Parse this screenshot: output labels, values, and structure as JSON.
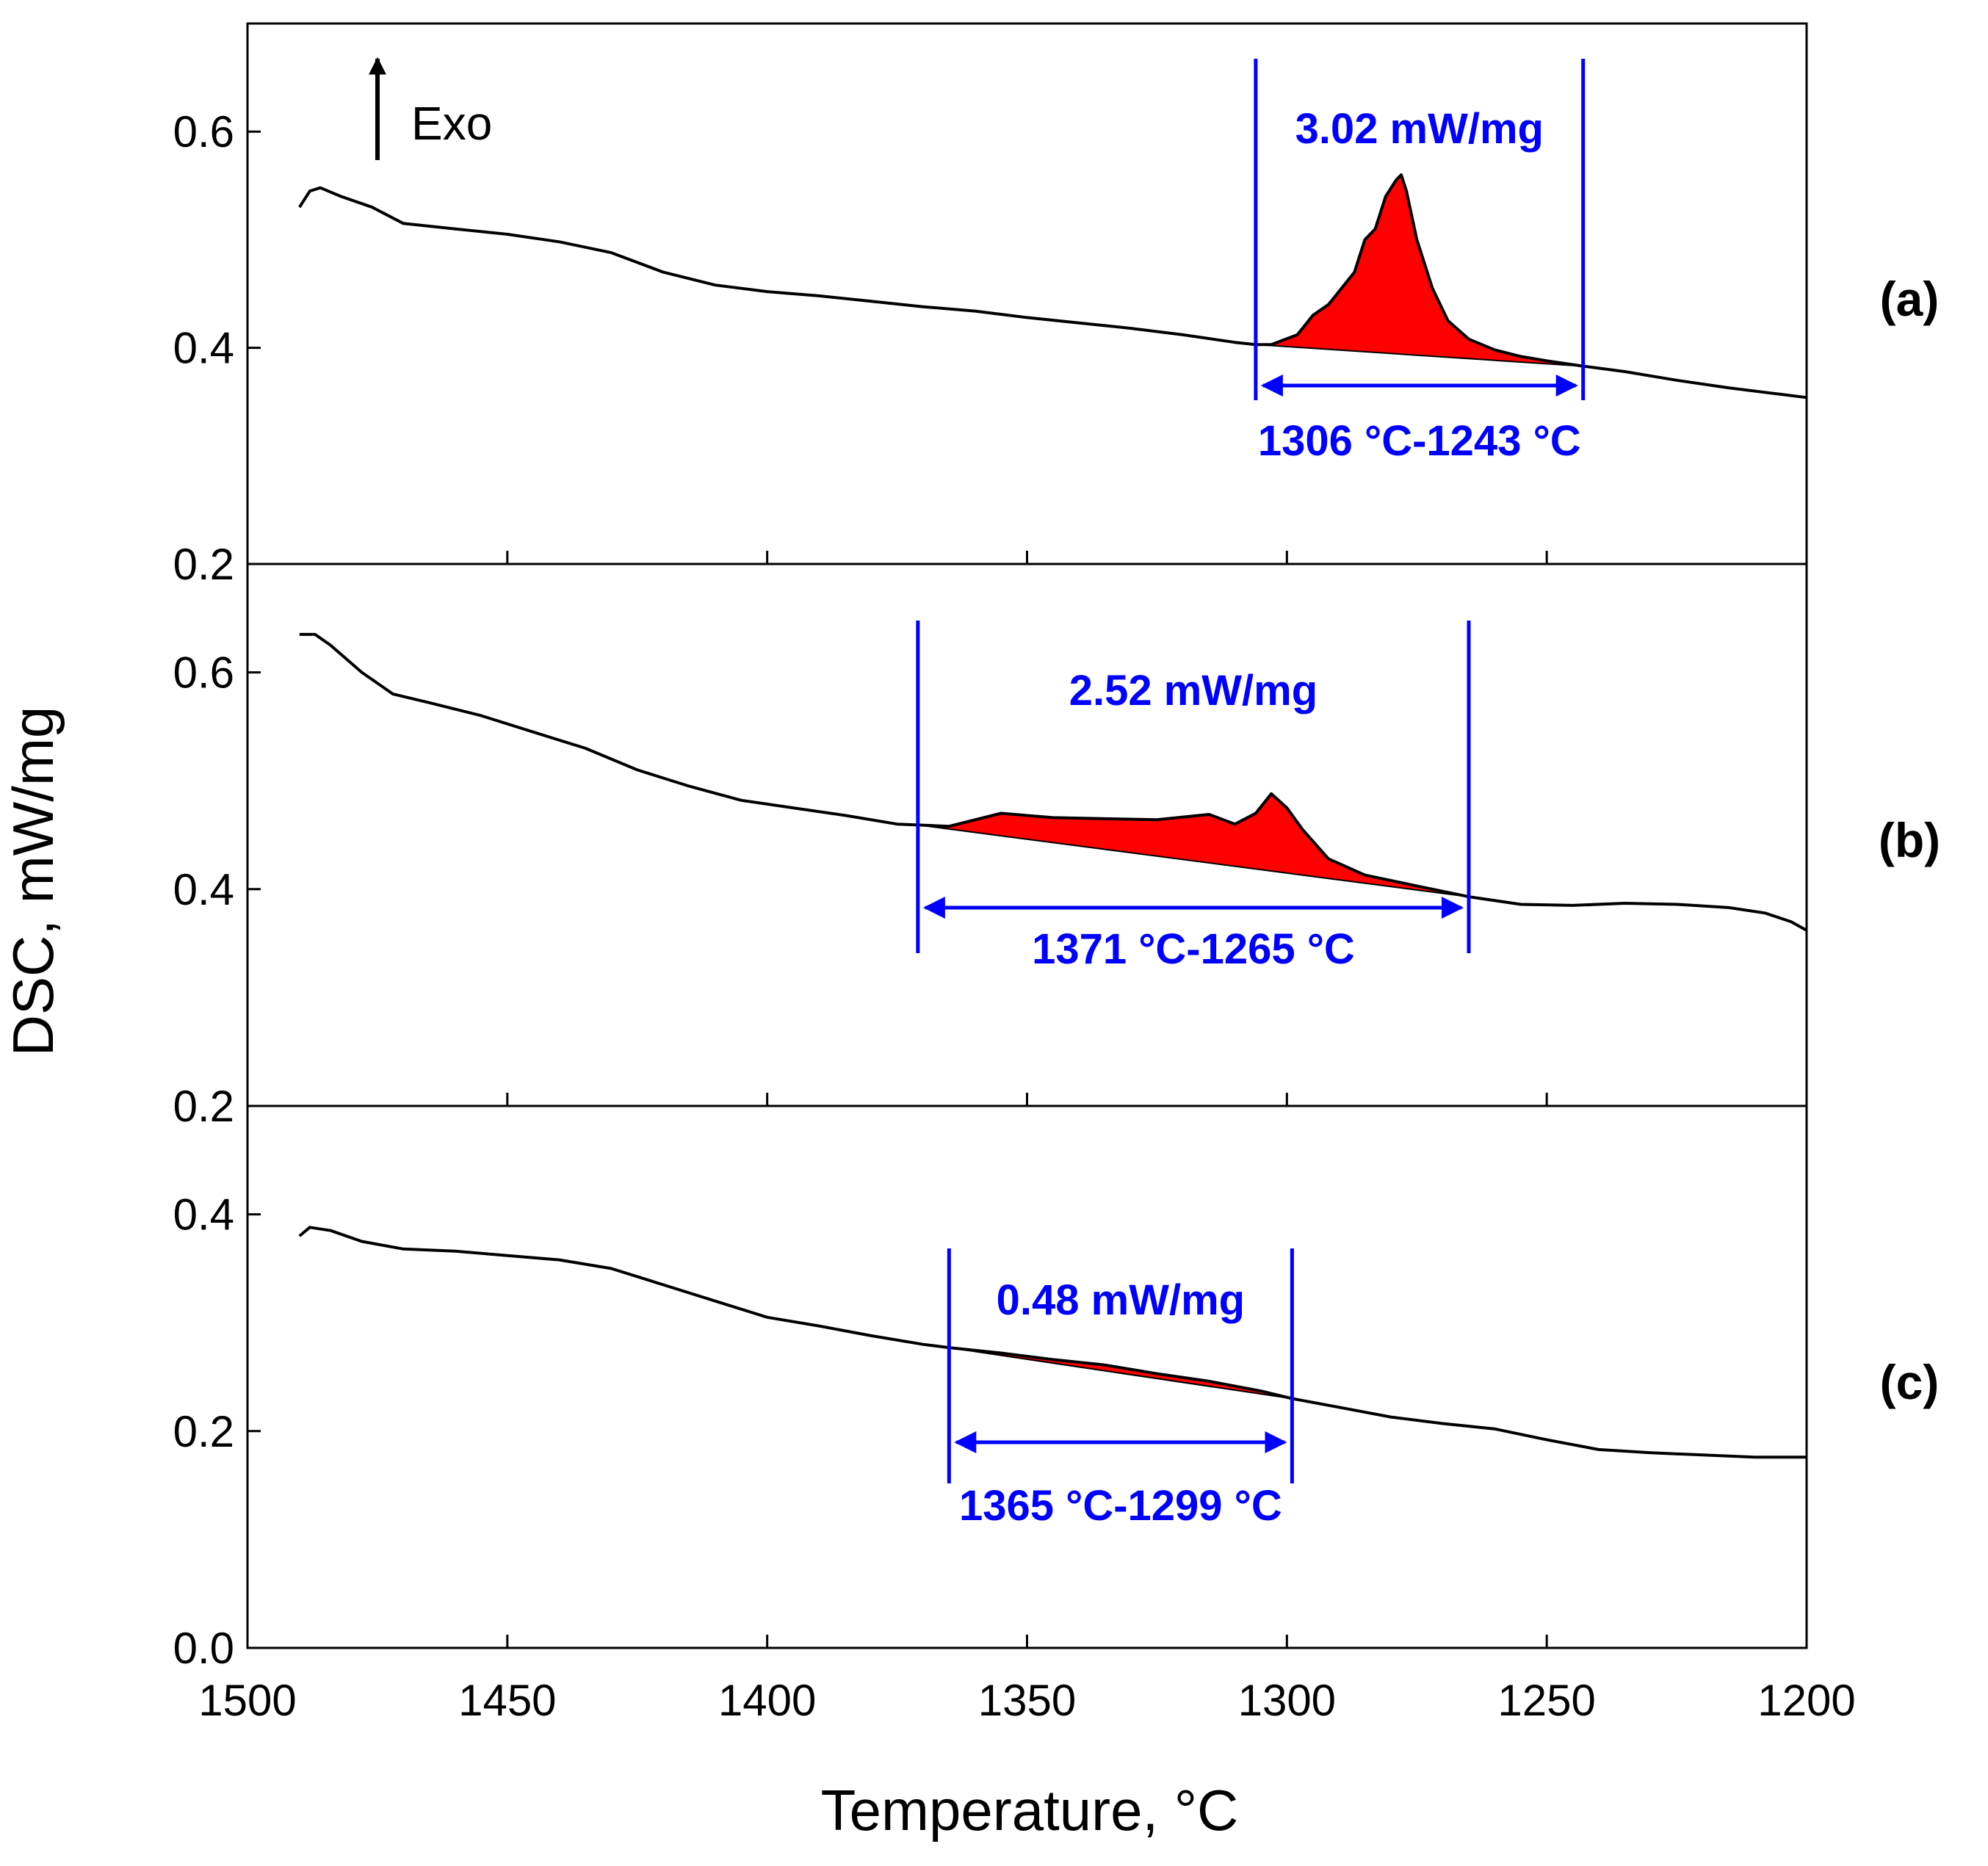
{
  "chart_data": {
    "type": "line",
    "xlabel": "Temperature, °C",
    "ylabel": "DSC, mW/mg",
    "xlim": [
      1500,
      1200
    ],
    "xticks": [
      "1500",
      "1450",
      "1400",
      "1350",
      "1300",
      "1250",
      "1200"
    ],
    "exo_label": "Exo",
    "colors": {
      "curve": "#000000",
      "annotation": "#0000ff",
      "fill": "#ff0000"
    },
    "panels": [
      {
        "label": "(a)",
        "ylim": [
          0.2,
          0.7
        ],
        "yticks": [
          "0.2",
          "0.4",
          "0.6"
        ],
        "curve": [
          [
            1490,
            0.53
          ],
          [
            1488,
            0.545
          ],
          [
            1486,
            0.548
          ],
          [
            1482,
            0.54
          ],
          [
            1476,
            0.53
          ],
          [
            1470,
            0.515
          ],
          [
            1460,
            0.51
          ],
          [
            1450,
            0.505
          ],
          [
            1440,
            0.498
          ],
          [
            1430,
            0.488
          ],
          [
            1420,
            0.47
          ],
          [
            1410,
            0.458
          ],
          [
            1400,
            0.452
          ],
          [
            1390,
            0.448
          ],
          [
            1380,
            0.443
          ],
          [
            1370,
            0.438
          ],
          [
            1360,
            0.434
          ],
          [
            1350,
            0.428
          ],
          [
            1340,
            0.423
          ],
          [
            1330,
            0.418
          ],
          [
            1320,
            0.412
          ],
          [
            1310,
            0.405
          ],
          [
            1306,
            0.403
          ],
          [
            1303,
            0.403
          ],
          [
            1298,
            0.412
          ],
          [
            1295,
            0.43
          ],
          [
            1292,
            0.44
          ],
          [
            1290,
            0.452
          ],
          [
            1287,
            0.47
          ],
          [
            1285,
            0.5
          ],
          [
            1283,
            0.51
          ],
          [
            1281,
            0.54
          ],
          [
            1279,
            0.555
          ],
          [
            1278,
            0.56
          ],
          [
            1277,
            0.545
          ],
          [
            1275,
            0.5
          ],
          [
            1272,
            0.455
          ],
          [
            1269,
            0.425
          ],
          [
            1265,
            0.408
          ],
          [
            1260,
            0.398
          ],
          [
            1255,
            0.392
          ],
          [
            1250,
            0.388
          ],
          [
            1243,
            0.383
          ],
          [
            1235,
            0.378
          ],
          [
            1225,
            0.37
          ],
          [
            1215,
            0.363
          ],
          [
            1205,
            0.357
          ],
          [
            1200,
            0.354
          ]
        ],
        "peak_range": [
          1306,
          1243
        ],
        "area_value": "3.02 mW/mg",
        "range_label": "1306 °C-1243 °C"
      },
      {
        "label": "(b)",
        "ylim": [
          0.2,
          0.7
        ],
        "yticks": [
          "0.2",
          "0.4",
          "0.6"
        ],
        "curve": [
          [
            1490,
            0.635
          ],
          [
            1487,
            0.635
          ],
          [
            1484,
            0.625
          ],
          [
            1478,
            0.6
          ],
          [
            1472,
            0.58
          ],
          [
            1465,
            0.572
          ],
          [
            1455,
            0.56
          ],
          [
            1445,
            0.545
          ],
          [
            1435,
            0.53
          ],
          [
            1425,
            0.51
          ],
          [
            1415,
            0.495
          ],
          [
            1405,
            0.482
          ],
          [
            1395,
            0.475
          ],
          [
            1385,
            0.468
          ],
          [
            1375,
            0.46
          ],
          [
            1365,
            0.458
          ],
          [
            1355,
            0.47
          ],
          [
            1345,
            0.466
          ],
          [
            1335,
            0.465
          ],
          [
            1325,
            0.464
          ],
          [
            1315,
            0.469
          ],
          [
            1310,
            0.46
          ],
          [
            1306,
            0.47
          ],
          [
            1303,
            0.488
          ],
          [
            1300,
            0.475
          ],
          [
            1297,
            0.455
          ],
          [
            1292,
            0.428
          ],
          [
            1285,
            0.413
          ],
          [
            1275,
            0.403
          ],
          [
            1265,
            0.393
          ],
          [
            1255,
            0.386
          ],
          [
            1245,
            0.385
          ],
          [
            1235,
            0.387
          ],
          [
            1225,
            0.386
          ],
          [
            1215,
            0.383
          ],
          [
            1208,
            0.378
          ],
          [
            1203,
            0.37
          ],
          [
            1200,
            0.362
          ]
        ],
        "peak_range": [
          1371,
          1265
        ],
        "area_value": "2.52 mW/mg",
        "range_label": "1371 °C-1265 °C"
      },
      {
        "label": "(c)",
        "ylim": [
          0.0,
          0.5
        ],
        "yticks": [
          "0.0",
          "0.2",
          "0.4"
        ],
        "curve": [
          [
            1490,
            0.38
          ],
          [
            1488,
            0.388
          ],
          [
            1484,
            0.385
          ],
          [
            1478,
            0.375
          ],
          [
            1470,
            0.368
          ],
          [
            1460,
            0.366
          ],
          [
            1450,
            0.362
          ],
          [
            1440,
            0.358
          ],
          [
            1430,
            0.35
          ],
          [
            1420,
            0.335
          ],
          [
            1410,
            0.32
          ],
          [
            1400,
            0.305
          ],
          [
            1390,
            0.297
          ],
          [
            1380,
            0.288
          ],
          [
            1370,
            0.28
          ],
          [
            1365,
            0.277
          ],
          [
            1355,
            0.272
          ],
          [
            1345,
            0.266
          ],
          [
            1335,
            0.261
          ],
          [
            1325,
            0.253
          ],
          [
            1315,
            0.246
          ],
          [
            1305,
            0.237
          ],
          [
            1299,
            0.23
          ],
          [
            1290,
            0.222
          ],
          [
            1280,
            0.213
          ],
          [
            1270,
            0.207
          ],
          [
            1260,
            0.202
          ],
          [
            1250,
            0.192
          ],
          [
            1240,
            0.183
          ],
          [
            1230,
            0.18
          ],
          [
            1220,
            0.178
          ],
          [
            1210,
            0.176
          ],
          [
            1200,
            0.176
          ]
        ],
        "peak_range": [
          1365,
          1299
        ],
        "area_value": "0.48 mW/mg",
        "range_label": "1365 °C-1299 °C"
      }
    ]
  }
}
